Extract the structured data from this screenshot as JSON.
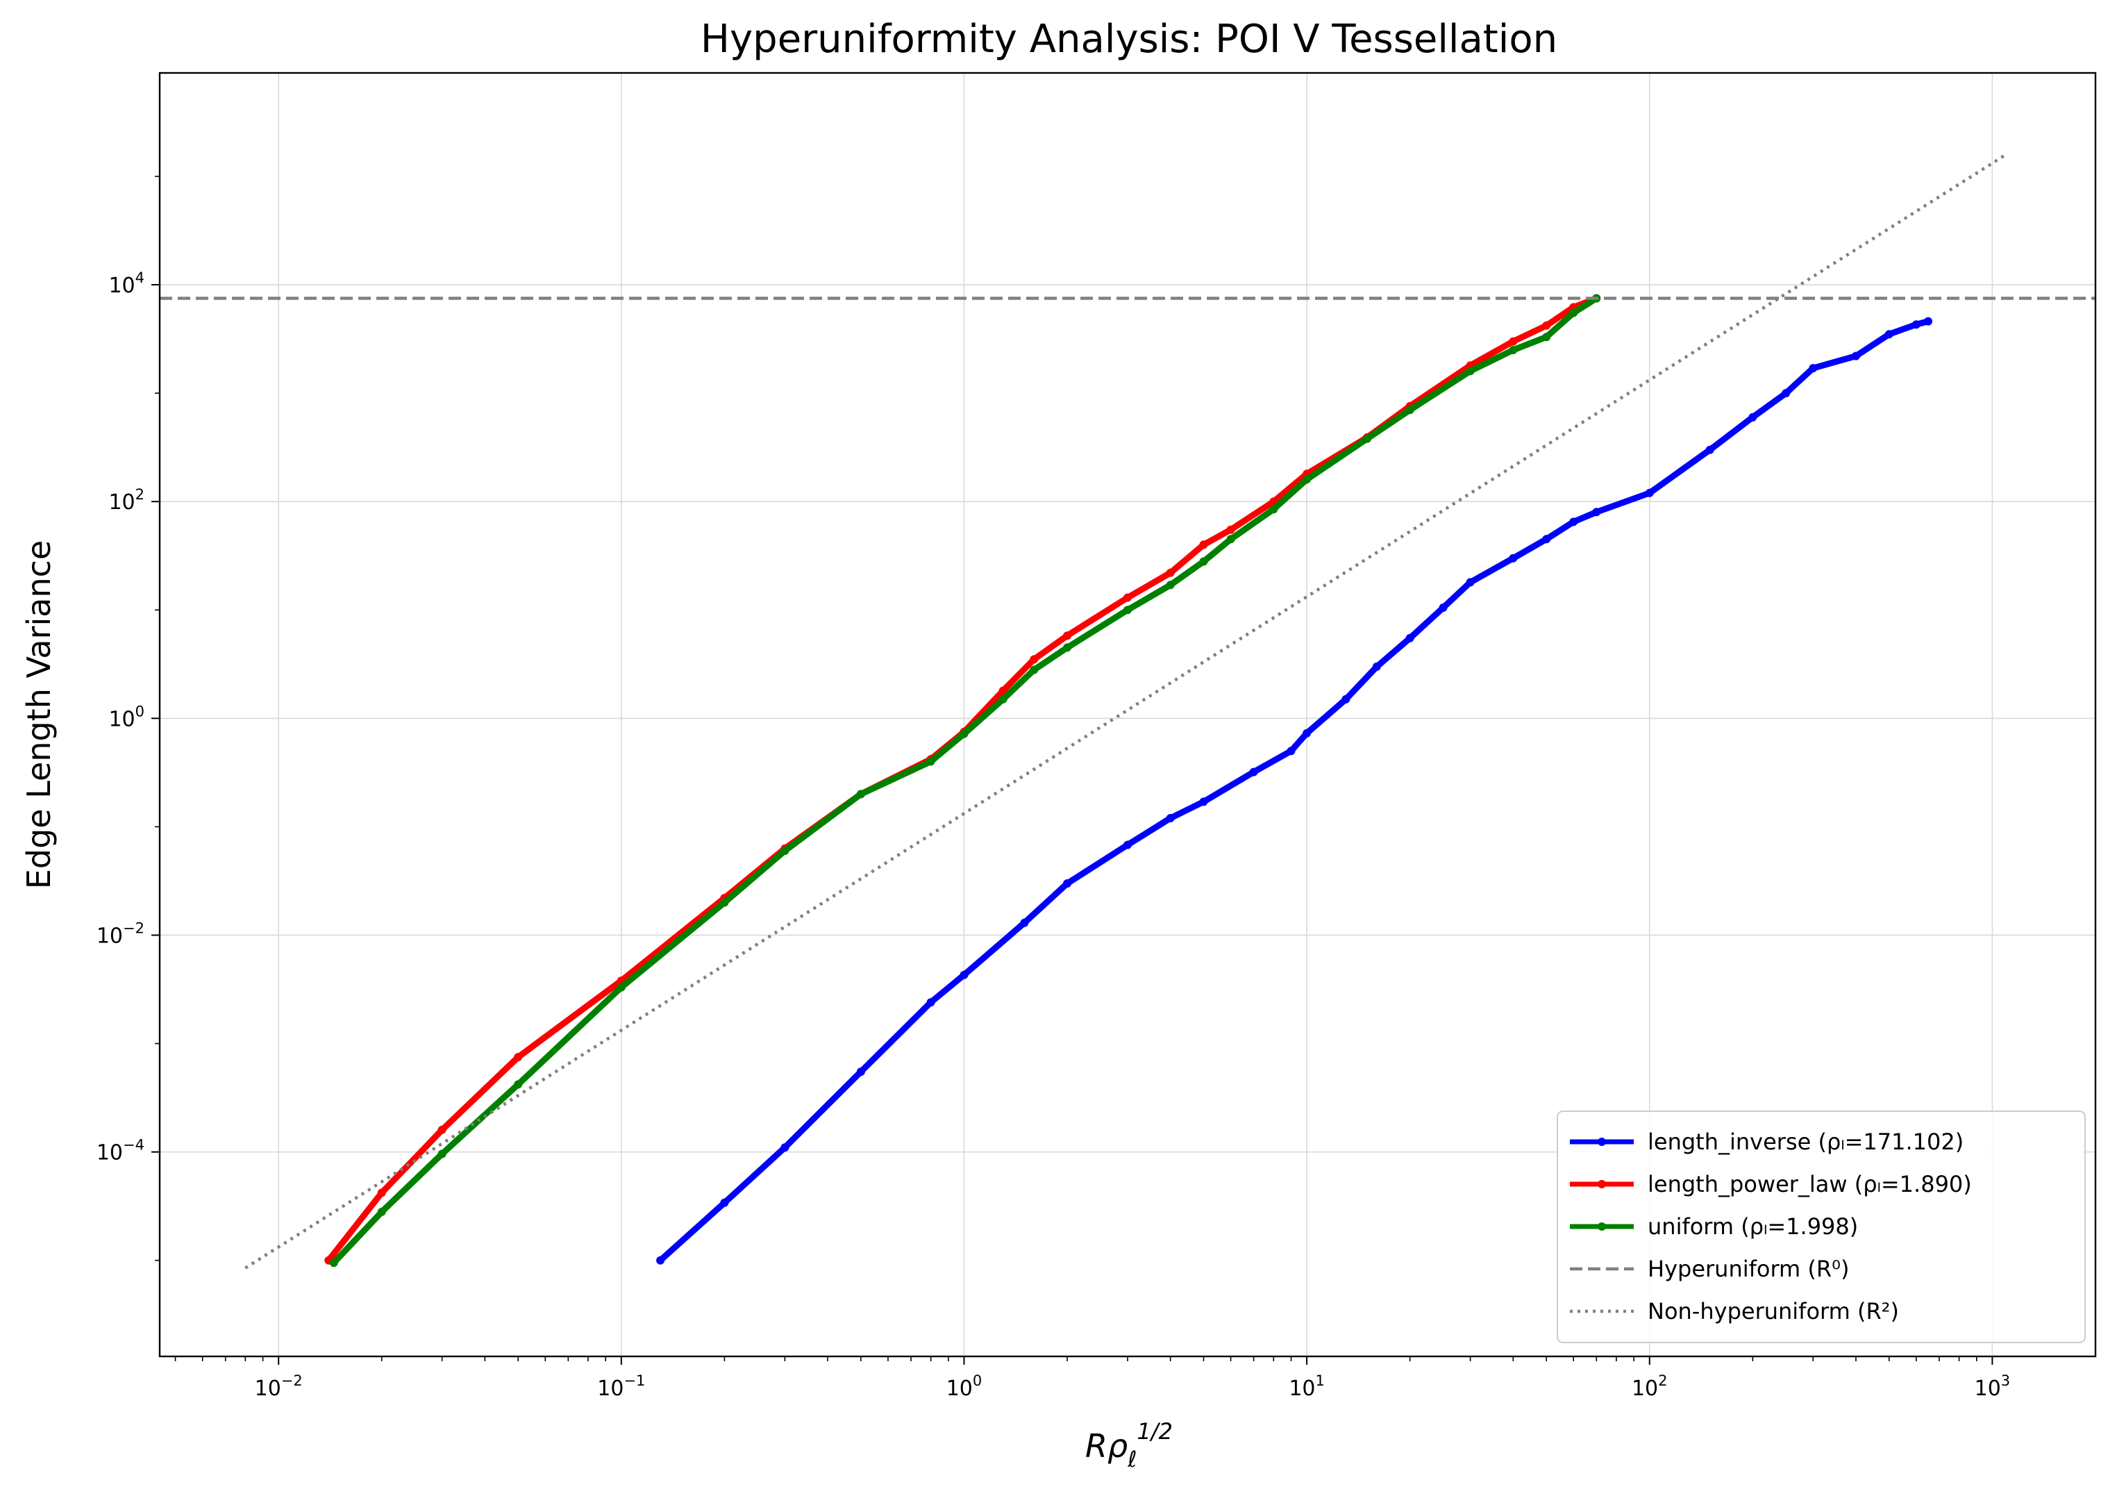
{
  "chart_data": {
    "type": "line",
    "title": "Hyperuniformity Analysis: POI V Tessellation",
    "xlabel": "Rρℓ^1/2",
    "ylabel": "Edge Length Variance",
    "xscale": "log",
    "yscale": "log",
    "xlim": [
      0.0045,
      2000
    ],
    "ylim": [
      1.3e-06,
      900000
    ],
    "grid": true,
    "legend_position": "lower-right",
    "x_ticks": [
      {
        "value": 0.01,
        "mant": "10",
        "exp": "−2"
      },
      {
        "value": 0.1,
        "mant": "10",
        "exp": "−1"
      },
      {
        "value": 1,
        "mant": "10",
        "exp": "0"
      },
      {
        "value": 10,
        "mant": "10",
        "exp": "1"
      },
      {
        "value": 100,
        "mant": "10",
        "exp": "2"
      },
      {
        "value": 1000,
        "mant": "10",
        "exp": "3"
      }
    ],
    "y_ticks": [
      {
        "value": 0.0001,
        "mant": "10",
        "exp": "−4"
      },
      {
        "value": 0.01,
        "mant": "10",
        "exp": "−2"
      },
      {
        "value": 1,
        "mant": "10",
        "exp": "0"
      },
      {
        "value": 100,
        "mant": "10",
        "exp": "2"
      },
      {
        "value": 10000,
        "mant": "10",
        "exp": "4"
      }
    ],
    "series": [
      {
        "name": "length_inverse (ρₗ=171.102)",
        "color": "#0000ff",
        "style": "line-marker",
        "x": [
          0.13,
          0.2,
          0.3,
          0.5,
          0.8,
          1.0,
          1.5,
          2.0,
          3.0,
          4.0,
          5.0,
          7.0,
          9.0,
          10,
          13,
          16,
          20,
          25,
          30,
          40,
          50,
          60,
          70,
          100,
          150,
          200,
          250,
          300,
          400,
          500,
          600,
          650
        ],
        "y": [
          1e-05,
          3.4e-05,
          0.00011,
          0.00055,
          0.0024,
          0.0043,
          0.013,
          0.03,
          0.068,
          0.12,
          0.17,
          0.32,
          0.5,
          0.73,
          1.5,
          3.0,
          5.5,
          10.5,
          18,
          30,
          45,
          65,
          80,
          120,
          300,
          600,
          1000,
          1700,
          2200,
          3500,
          4300,
          4600
        ]
      },
      {
        "name": "length_power_law (ρₗ=1.890)",
        "color": "#ff0000",
        "style": "line-marker",
        "x": [
          0.014,
          0.02,
          0.03,
          0.05,
          0.1,
          0.2,
          0.3,
          0.5,
          0.8,
          1.0,
          1.3,
          1.6,
          2.0,
          3.0,
          4.0,
          5.0,
          6.0,
          8.0,
          10,
          15,
          20,
          30,
          40,
          50,
          60,
          70
        ],
        "y": [
          1e-05,
          4.2e-05,
          0.00016,
          0.00075,
          0.0038,
          0.022,
          0.063,
          0.2,
          0.42,
          0.75,
          1.8,
          3.5,
          5.8,
          13,
          22,
          40,
          55,
          100,
          180,
          390,
          760,
          1800,
          3000,
          4200,
          6200,
          7500
        ]
      },
      {
        "name": "uniform (ρₗ=1.998)",
        "color": "#008000",
        "style": "line-marker",
        "x": [
          0.0145,
          0.02,
          0.03,
          0.05,
          0.1,
          0.2,
          0.3,
          0.5,
          0.8,
          1.0,
          1.3,
          1.6,
          2.0,
          3.0,
          4.0,
          5.0,
          6.0,
          8.0,
          10,
          15,
          20,
          30,
          40,
          50,
          60,
          70
        ],
        "y": [
          9.5e-06,
          2.8e-05,
          9.6e-05,
          0.00042,
          0.0033,
          0.02,
          0.06,
          0.2,
          0.4,
          0.72,
          1.5,
          2.8,
          4.5,
          10,
          17,
          28,
          45,
          85,
          160,
          380,
          700,
          1600,
          2500,
          3300,
          5500,
          7500
        ]
      },
      {
        "name": "Hyperuniform (R⁰)",
        "color": "#808080",
        "style": "dashed",
        "x": [
          0.0045,
          2000
        ],
        "y": [
          7500,
          7500
        ]
      },
      {
        "name": "Non-hyperuniform (R²)",
        "color": "#808080",
        "style": "dotted",
        "x": [
          0.008,
          1100
        ],
        "y": [
          8.5e-06,
          160000
        ]
      }
    ]
  }
}
